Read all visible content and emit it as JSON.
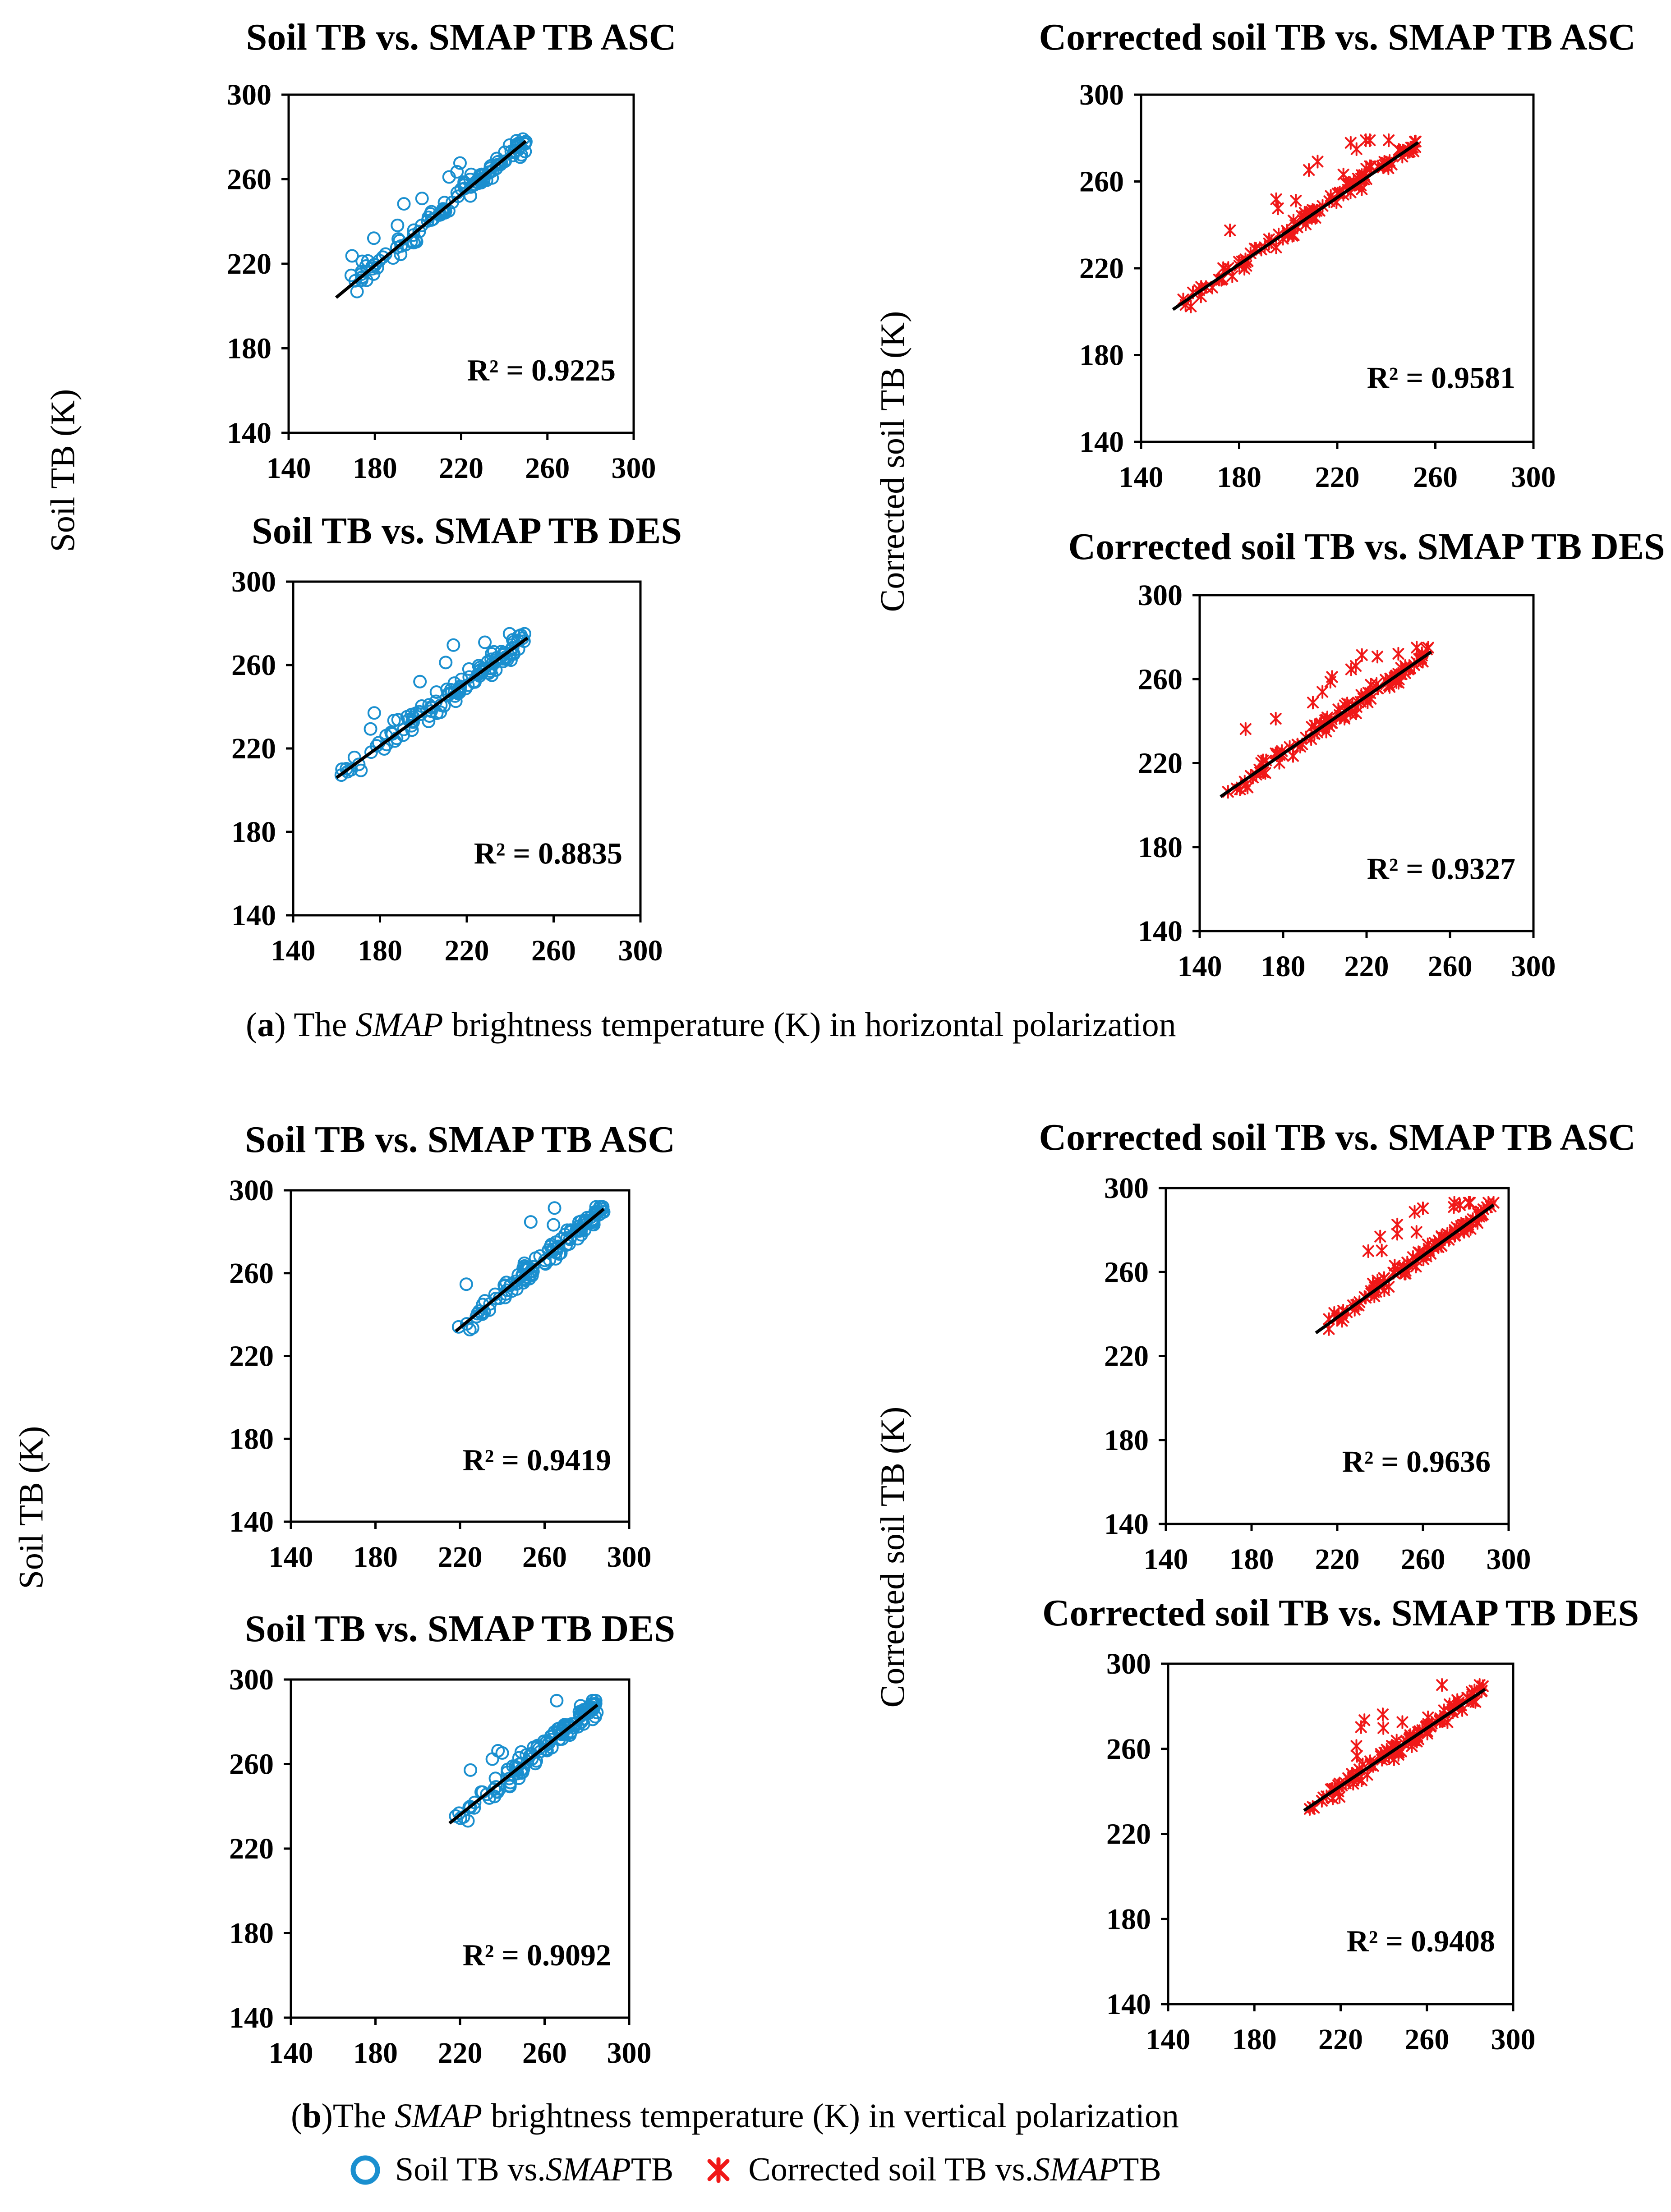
{
  "figure": {
    "caption_a": {
      "label": "a",
      "pre": "The ",
      "em": "SMAP",
      "post": " brightness temperature (K) in horizontal polarization"
    },
    "caption_b": {
      "label": "b",
      "pre": "The ",
      "em": "SMAP",
      "post": " brightness temperature (K) in vertical polarization"
    },
    "ytitle_soil": "Soil TB (K)",
    "ytitle_corrected": "Corrected soil TB (K)",
    "legend": [
      {
        "pre": "Soil TB vs. ",
        "em": "SMAP",
        "post": " TB"
      },
      {
        "pre": "Corrected soil TB vs. ",
        "em": "SMAP",
        "post": " TB"
      }
    ]
  },
  "colors": {
    "soil": "#1a8fcf",
    "corrected": "#f01818",
    "trend": "#000000",
    "axis": "#000000"
  },
  "icons": {
    "soil_marker": "open-circle-icon",
    "corrected_marker": "cross-star-icon"
  },
  "chart_data": [
    {
      "id": "a-soil-asc",
      "type": "scatter",
      "title": "Soil TB vs. SMAP TB ASC",
      "marker": "circle",
      "x_range": [
        163,
        250
      ],
      "y_range": [
        197,
        279
      ],
      "line": [
        [
          162,
          204
        ],
        [
          250,
          278
        ]
      ],
      "r2": "R² = 0.9225",
      "xlim": [
        140,
        300
      ],
      "ylim": [
        140,
        300
      ],
      "ticks": [
        "140",
        "180",
        "220",
        "260",
        "300"
      ]
    },
    {
      "id": "a-corr-asc",
      "type": "scatter",
      "title": "Corrected soil TB vs. SMAP TB ASC",
      "marker": "star",
      "x_range": [
        155,
        253
      ],
      "y_range": [
        197,
        279
      ],
      "line": [
        [
          153,
          201
        ],
        [
          253,
          278
        ]
      ],
      "r2": "R² = 0.9581",
      "xlim": [
        140,
        300
      ],
      "ylim": [
        140,
        300
      ],
      "ticks": [
        "140",
        "180",
        "220",
        "260",
        "300"
      ]
    },
    {
      "id": "a-soil-des",
      "type": "scatter",
      "title": "Soil TB vs. SMAP TB DES",
      "marker": "circle",
      "x_range": [
        160,
        247
      ],
      "y_range": [
        197,
        275
      ],
      "line": [
        [
          160,
          206
        ],
        [
          248,
          273
        ]
      ],
      "r2": "R² = 0.8835",
      "xlim": [
        140,
        300
      ],
      "ylim": [
        140,
        300
      ],
      "ticks": [
        "140",
        "180",
        "220",
        "260",
        "300"
      ]
    },
    {
      "id": "a-corr-des",
      "type": "scatter",
      "title": "Corrected soil TB vs. SMAP TB DES",
      "marker": "star",
      "x_range": [
        150,
        250
      ],
      "y_range": [
        197,
        275
      ],
      "line": [
        [
          150,
          204
        ],
        [
          251,
          273
        ]
      ],
      "r2": "R² = 0.9327",
      "xlim": [
        140,
        300
      ],
      "ylim": [
        140,
        300
      ],
      "ticks": [
        "140",
        "180",
        "220",
        "260",
        "300"
      ]
    },
    {
      "id": "b-soil-asc",
      "type": "scatter",
      "title": "Soil TB vs. SMAP TB ASC",
      "marker": "circle",
      "x_range": [
        218,
        288
      ],
      "y_range": [
        229,
        292
      ],
      "line": [
        [
          218,
          232
        ],
        [
          288,
          291
        ]
      ],
      "r2": "R² = 0.9419",
      "xlim": [
        140,
        300
      ],
      "ylim": [
        140,
        300
      ],
      "ticks": [
        "140",
        "180",
        "220",
        "260",
        "300"
      ]
    },
    {
      "id": "b-corr-asc",
      "type": "scatter",
      "title": "Corrected soil TB vs. SMAP TB ASC",
      "marker": "star",
      "x_range": [
        210,
        293
      ],
      "y_range": [
        229,
        293
      ],
      "line": [
        [
          210,
          231
        ],
        [
          293,
          292
        ]
      ],
      "r2": "R² = 0.9636",
      "xlim": [
        140,
        300
      ],
      "ylim": [
        140,
        300
      ],
      "ticks": [
        "140",
        "180",
        "220",
        "260",
        "300"
      ]
    },
    {
      "id": "b-soil-des",
      "type": "scatter",
      "title": "Soil TB vs. SMAP TB DES",
      "marker": "circle",
      "x_range": [
        215,
        285
      ],
      "y_range": [
        229,
        290
      ],
      "line": [
        [
          215,
          232
        ],
        [
          285,
          288
        ]
      ],
      "r2": "R² = 0.9092",
      "xlim": [
        140,
        300
      ],
      "ylim": [
        140,
        300
      ],
      "ticks": [
        "140",
        "180",
        "220",
        "260",
        "300"
      ]
    },
    {
      "id": "b-corr-des",
      "type": "scatter",
      "title": "Corrected soil TB vs. SMAP TB DES",
      "marker": "star",
      "x_range": [
        203,
        286
      ],
      "y_range": [
        229,
        290
      ],
      "line": [
        [
          203,
          231
        ],
        [
          287,
          288
        ]
      ],
      "r2": "R² = 0.9408",
      "xlim": [
        140,
        300
      ],
      "ylim": [
        140,
        300
      ],
      "ticks": [
        "140",
        "180",
        "220",
        "260",
        "300"
      ]
    }
  ]
}
